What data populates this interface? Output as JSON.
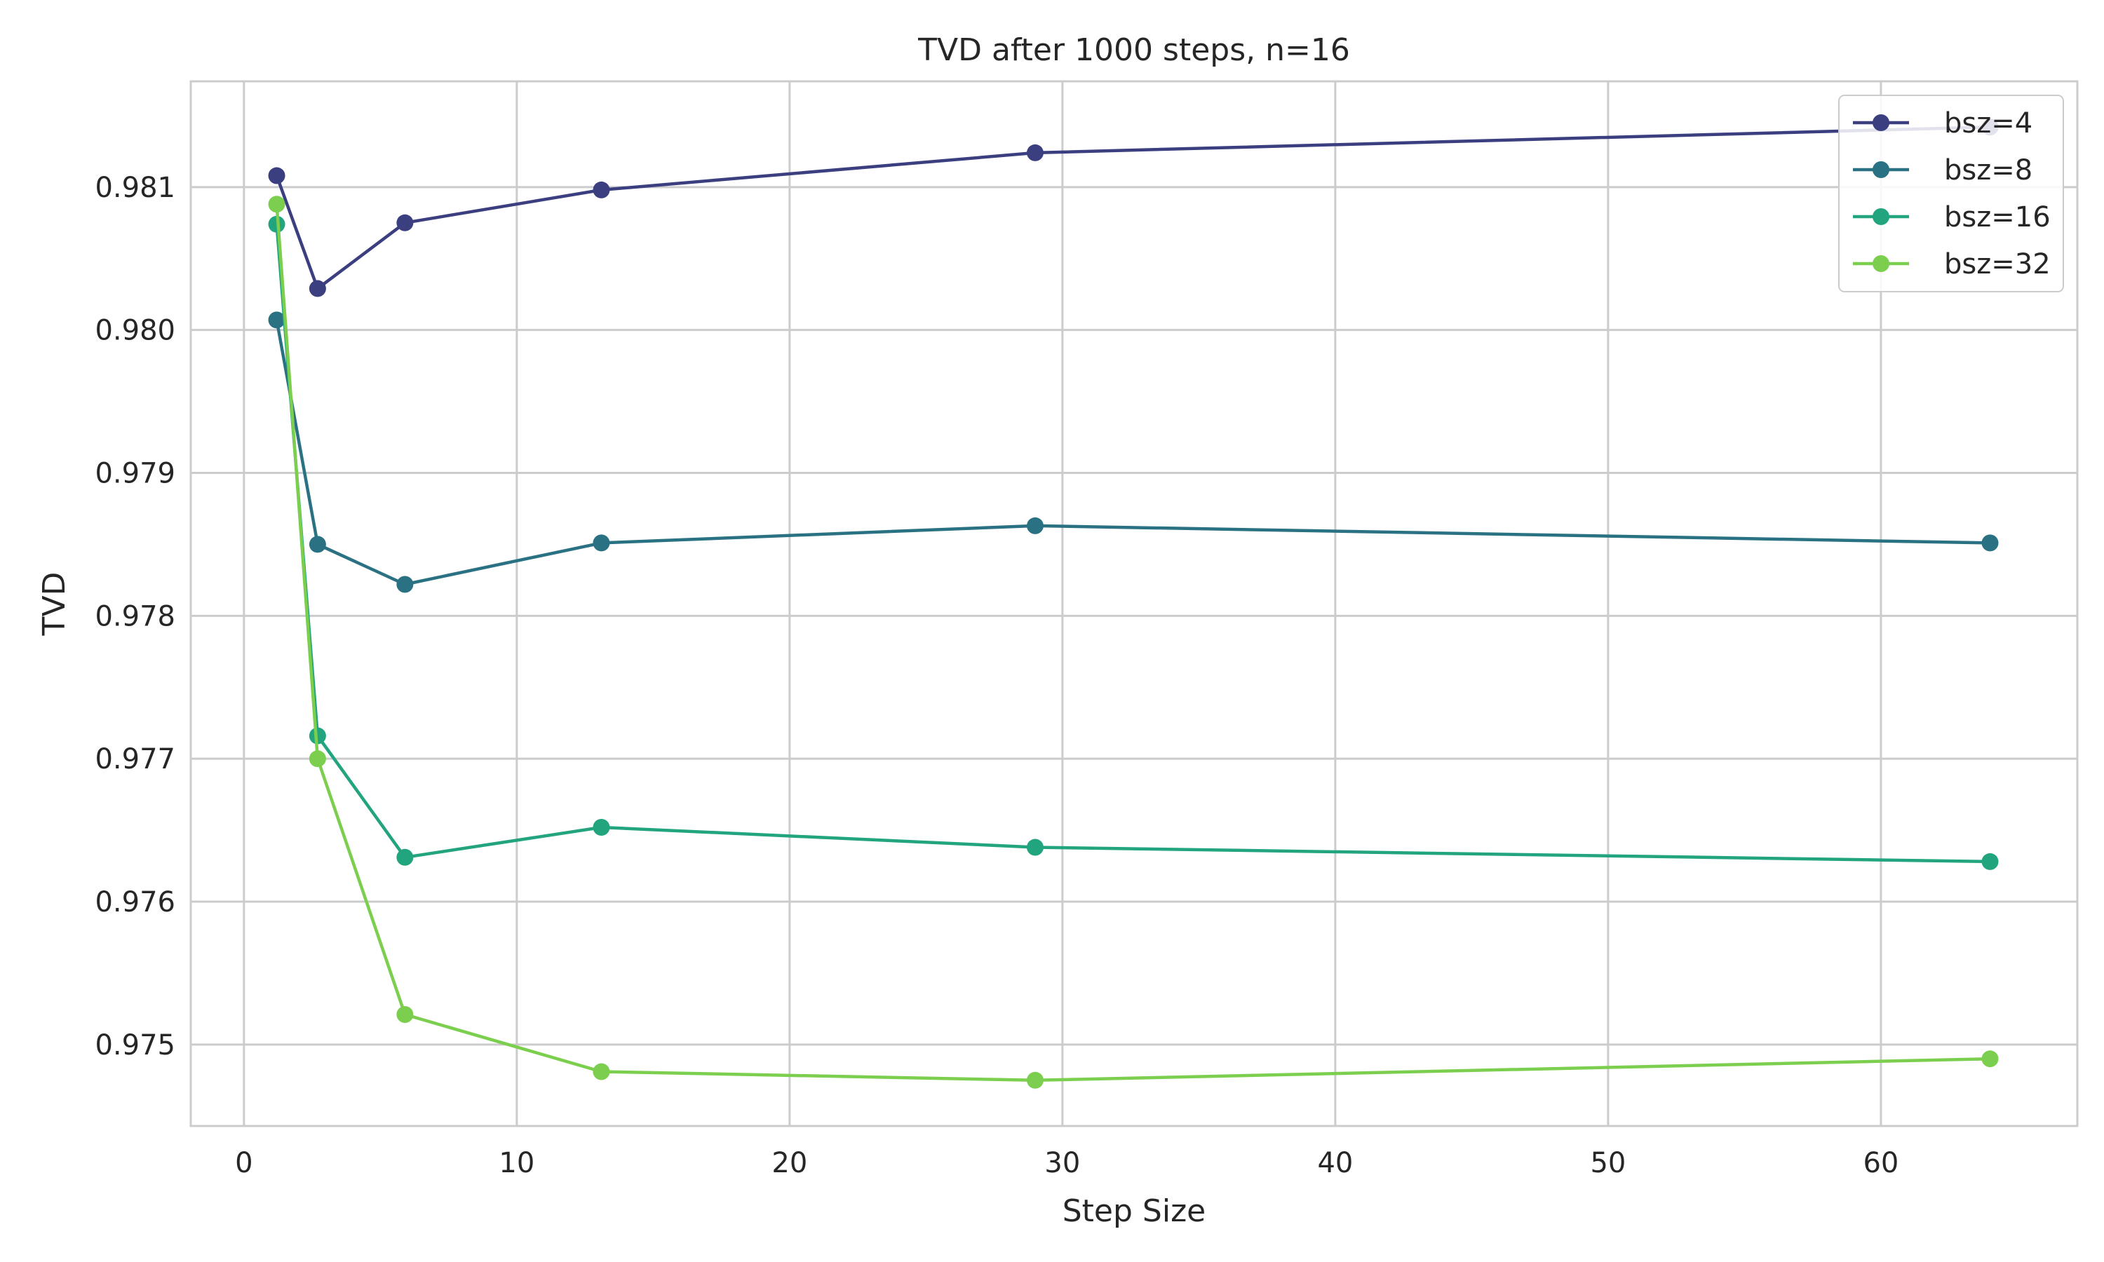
{
  "chart_data": {
    "type": "line",
    "title": "TVD after 1000 steps, n=16",
    "xlabel": "Step Size",
    "ylabel": "TVD",
    "xlim": [
      -1.95,
      67.2
    ],
    "ylim": [
      0.97443,
      0.98174
    ],
    "xticks": [
      0,
      10,
      20,
      30,
      40,
      50,
      60
    ],
    "xtick_labels": [
      "0",
      "10",
      "20",
      "30",
      "40",
      "50",
      "60"
    ],
    "yticks": [
      0.975,
      0.976,
      0.977,
      0.978,
      0.979,
      0.98,
      0.981
    ],
    "ytick_labels": [
      "0.975",
      "0.976",
      "0.977",
      "0.978",
      "0.979",
      "0.980",
      "0.981"
    ],
    "grid": true,
    "legend_position": "top-right",
    "x": [
      1.2,
      2.7,
      5.9,
      13.1,
      29.0,
      64.0
    ],
    "series": [
      {
        "name": "bsz=4",
        "color": "#3b3f80",
        "values": [
          0.98108,
          0.98029,
          0.98075,
          0.98098,
          0.98124,
          0.98142
        ]
      },
      {
        "name": "bsz=8",
        "color": "#2a7283",
        "values": [
          0.98007,
          0.9785,
          0.97822,
          0.97851,
          0.97863,
          0.97851
        ]
      },
      {
        "name": "bsz=16",
        "color": "#22a47e",
        "values": [
          0.98074,
          0.97716,
          0.97631,
          0.97652,
          0.97638,
          0.97628
        ]
      },
      {
        "name": "bsz=32",
        "color": "#7ccf4e",
        "values": [
          0.98088,
          0.977,
          0.97521,
          0.97481,
          0.97475,
          0.9749
        ]
      }
    ]
  }
}
